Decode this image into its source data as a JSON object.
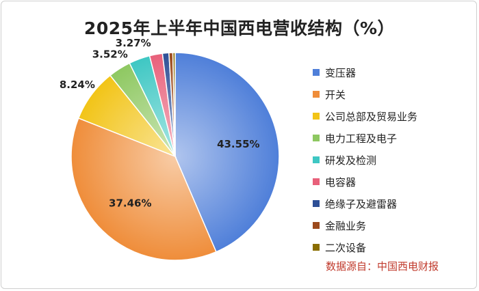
{
  "chart_data": {
    "type": "pie",
    "title": "2025年上半年中国西电营收结构（%）",
    "source": "数据源自：中国西电财报",
    "slices": [
      {
        "name": "变压器",
        "value": 43.55,
        "label": "43.55%",
        "color": "#4f7fd9"
      },
      {
        "name": "开关",
        "value": 37.46,
        "label": "37.46%",
        "color": "#ef8d3a"
      },
      {
        "name": "公司总部及贸易业务",
        "value": 8.24,
        "label": "8.24%",
        "color": "#f2c417"
      },
      {
        "name": "电力工程及电子",
        "value": 3.52,
        "label": "3.52%",
        "color": "#8ec861"
      },
      {
        "name": "研发及检测",
        "value": 3.27,
        "label": "3.27%",
        "color": "#3ec7c3"
      },
      {
        "name": "电容器",
        "value": 2.0,
        "label": "",
        "color": "#e8607a"
      },
      {
        "name": "绝缘子及避雷器",
        "value": 1.0,
        "label": "",
        "color": "#2d4f96"
      },
      {
        "name": "金融业务",
        "value": 0.6,
        "label": "",
        "color": "#9c4a1c"
      },
      {
        "name": "二次设备",
        "value": 0.36,
        "label": "",
        "color": "#8a6d00"
      }
    ],
    "legend_position": "right"
  }
}
